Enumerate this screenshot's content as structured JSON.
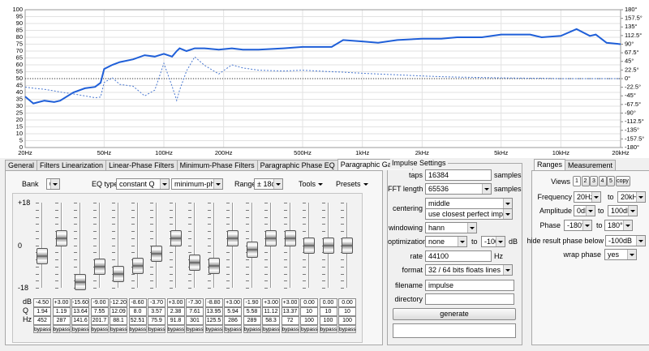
{
  "chart_data": {
    "type": "line",
    "x": [
      20,
      22,
      25,
      28,
      30,
      35,
      40,
      45,
      48,
      50,
      55,
      60,
      70,
      80,
      90,
      100,
      110,
      116,
      120,
      130,
      143,
      160,
      189,
      220,
      250,
      300,
      400,
      500,
      700,
      800,
      1000,
      1200,
      1500,
      2000,
      2500,
      3000,
      4000,
      5000,
      7000,
      8000,
      10000,
      12000,
      14000,
      15000,
      17000,
      20000
    ],
    "xlim": [
      20,
      20000
    ],
    "xscale": "log",
    "xticks": [
      {
        "value": 20,
        "label": "20Hz"
      },
      {
        "value": 50,
        "label": "50Hz"
      },
      {
        "value": 100,
        "label": "100Hz"
      },
      {
        "value": 200,
        "label": "200Hz"
      },
      {
        "value": 500,
        "label": "500Hz"
      },
      {
        "value": 1000,
        "label": "1kHz"
      },
      {
        "value": 2000,
        "label": "2kHz"
      },
      {
        "value": 5000,
        "label": "5kHz"
      },
      {
        "value": 10000,
        "label": "10kHz"
      },
      {
        "value": 20000,
        "label": "20kHz"
      }
    ],
    "ylim": [
      0,
      100
    ],
    "yticks": [
      0,
      5,
      10,
      15,
      20,
      25,
      30,
      35,
      40,
      45,
      50,
      55,
      60,
      65,
      70,
      75,
      80,
      85,
      90,
      95,
      100
    ],
    "y2lim": [
      -180,
      180
    ],
    "y2ticks": [
      {
        "value": 180,
        "label": "180°"
      },
      {
        "value": 157.5,
        "label": "157.5°"
      },
      {
        "value": 135,
        "label": "135°"
      },
      {
        "value": 112.5,
        "label": "112.5°"
      },
      {
        "value": 90,
        "label": "90°"
      },
      {
        "value": 67.5,
        "label": "67.5°"
      },
      {
        "value": 45,
        "label": "45°"
      },
      {
        "value": 22.5,
        "label": "22.5°"
      },
      {
        "value": 0,
        "label": "0°"
      },
      {
        "value": -22.5,
        "label": "-22.5°"
      },
      {
        "value": -45,
        "label": "-45°"
      },
      {
        "value": -67.5,
        "label": "-67.5°"
      },
      {
        "value": -90,
        "label": "-90°"
      },
      {
        "value": -112.5,
        "label": "-112.5°"
      },
      {
        "value": -135,
        "label": "-135°"
      },
      {
        "value": -157.5,
        "label": "-157.5°"
      },
      {
        "value": -180,
        "label": "-180°"
      }
    ],
    "grid": true,
    "series": [
      {
        "color": "#1f5fd8",
        "style": "solid",
        "values": [
          37,
          32,
          34,
          33,
          34,
          40,
          43,
          44,
          47,
          57,
          60,
          62,
          64,
          67,
          66,
          68,
          66,
          70,
          72,
          70,
          72,
          72,
          71,
          72,
          71,
          71,
          72,
          73,
          73,
          78,
          77,
          76,
          78,
          79,
          79,
          80,
          80,
          82,
          82,
          80,
          81,
          86,
          81,
          82,
          76,
          75
        ]
      },
      {
        "color": "#4a78d0",
        "style": "dotted",
        "axis": "y2",
        "values": [
          -22,
          -25,
          -28,
          -32,
          -35,
          -40,
          -45,
          -50,
          -48,
          -10,
          2,
          -15,
          -20,
          -45,
          -30,
          40,
          -20,
          -57,
          -30,
          20,
          57,
          35,
          12,
          36,
          28,
          22,
          20,
          22,
          18,
          17,
          14,
          12,
          10,
          7,
          5,
          4,
          3,
          2,
          1,
          1,
          0,
          0,
          0,
          0,
          0,
          0
        ]
      }
    ]
  },
  "tabs": {
    "items": [
      "General",
      "Filters Linearization",
      "Linear-Phase Filters",
      "Minimum-Phase Filters",
      "Paragraphic Phase EQ",
      "Paragraphic Gain EQ"
    ],
    "active": 5
  },
  "eq": {
    "bank_label": "Bank",
    "bank": "01",
    "eq_type_label": "EQ type",
    "eq_type": "constant Q",
    "phase_mode": "minimum-phase",
    "range_label": "Range",
    "range": "± 18dB",
    "tools": "Tools",
    "presets": "Presets",
    "scale": [
      "+18",
      "0",
      "-18"
    ],
    "row_labels": [
      "dB",
      "Q",
      "Hz"
    ],
    "bands": [
      {
        "db": "-4.50",
        "q": "1.94",
        "hz": "452",
        "bypass": "bypass"
      },
      {
        "db": "+3.00",
        "q": "1.19",
        "hz": "287",
        "bypass": "bypass"
      },
      {
        "db": "-15.60",
        "q": "13.64",
        "hz": "141.6",
        "bypass": "bypass"
      },
      {
        "db": "-9.00",
        "q": "7.55",
        "hz": "201.7",
        "bypass": "bypass"
      },
      {
        "db": "-12.20",
        "q": "12.09",
        "hz": "88.1",
        "bypass": "bypass"
      },
      {
        "db": "-8.60",
        "q": "8.0",
        "hz": "52.51",
        "bypass": "bypass"
      },
      {
        "db": "-3.70",
        "q": "3.57",
        "hz": "75.9",
        "bypass": "bypass"
      },
      {
        "db": "+3.00",
        "q": "2.38",
        "hz": "91.8",
        "bypass": "bypass"
      },
      {
        "db": "-7.30",
        "q": "7.61",
        "hz": "301",
        "bypass": "bypass"
      },
      {
        "db": "-8.80",
        "q": "13.95",
        "hz": "125.5",
        "bypass": "bypass"
      },
      {
        "db": "+3.00",
        "q": "5.94",
        "hz": "286",
        "bypass": "bypass"
      },
      {
        "db": "-1.90",
        "q": "5.58",
        "hz": "289",
        "bypass": "bypass"
      },
      {
        "db": "+3.00",
        "q": "11.12",
        "hz": "58.3",
        "bypass": "bypass"
      },
      {
        "db": "+3.00",
        "q": "13.37",
        "hz": "72",
        "bypass": "bypass"
      },
      {
        "db": "0.00",
        "q": "10",
        "hz": "100",
        "bypass": "bypass"
      },
      {
        "db": "0.00",
        "q": "10",
        "hz": "100",
        "bypass": "bypass"
      },
      {
        "db": "0.00",
        "q": "10",
        "hz": "100",
        "bypass": "bypass"
      }
    ]
  },
  "impulse": {
    "title": "Impulse Settings",
    "taps_label": "taps",
    "taps": "16384",
    "taps_unit": "samples",
    "fft_label": "FFT length",
    "fft": "65536",
    "fft_unit": "samples",
    "centering_label": "centering",
    "centering": "middle",
    "centering2": "use closest perfect impulse",
    "windowing_label": "windowing",
    "windowing": "hann",
    "optimization_label": "optimization",
    "optimization": "none",
    "to": "to",
    "opt_db": "-100",
    "opt_unit": "dB",
    "rate_label": "rate",
    "rate": "44100",
    "rate_unit": "Hz",
    "format_label": "format",
    "format": "32 / 64 bits floats lines (.txt)",
    "filename_label": "filename",
    "filename": "impulse",
    "directory_label": "directory",
    "generate": "generate"
  },
  "ranges": {
    "tabs": [
      "Ranges",
      "Measurement"
    ],
    "active": 0,
    "views_label": "Views",
    "views": [
      "1",
      "2",
      "3",
      "4",
      "5",
      "copy"
    ],
    "frequency_label": "Frequency",
    "freq_from": "20Hz",
    "to": "to",
    "freq_to": "20kHz",
    "amplitude_label": "Amplitude",
    "amp_from": "0dB",
    "amp_to": "100dB",
    "phase_label": "Phase",
    "phase_from": "-180°",
    "phase_to": "180°",
    "hide_label": "hide result phase below",
    "hide": "-100dB",
    "wrap_label": "wrap phase",
    "wrap": "yes"
  }
}
